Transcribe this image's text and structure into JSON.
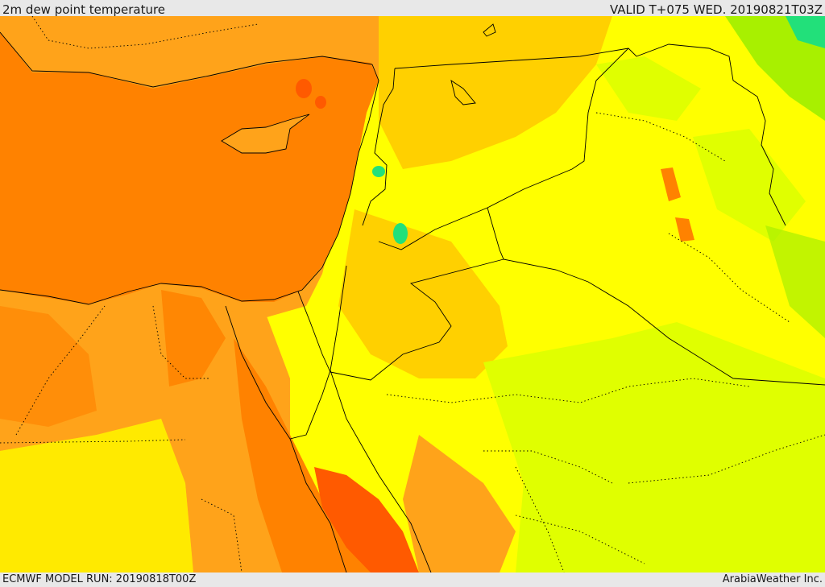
{
  "header": {
    "title": "2m dew point temperature",
    "valid": "VALID T+075 WED. 20190821T03Z"
  },
  "footer": {
    "model_run": "ECMWF MODEL RUN: 20190818T00Z",
    "credit": "ArabiaWeather Inc."
  },
  "map": {
    "field": "2m dew point temperature",
    "palette": {
      "very_humid": "#ff5a00",
      "humid": "#ff8200",
      "warm": "#ffa31a",
      "moderate": "#ffd000",
      "mild": "#ffff00",
      "dry": "#e0ff00",
      "very_dry": "#a8f000",
      "driest": "#22e07a"
    },
    "border_color": "#000000"
  }
}
